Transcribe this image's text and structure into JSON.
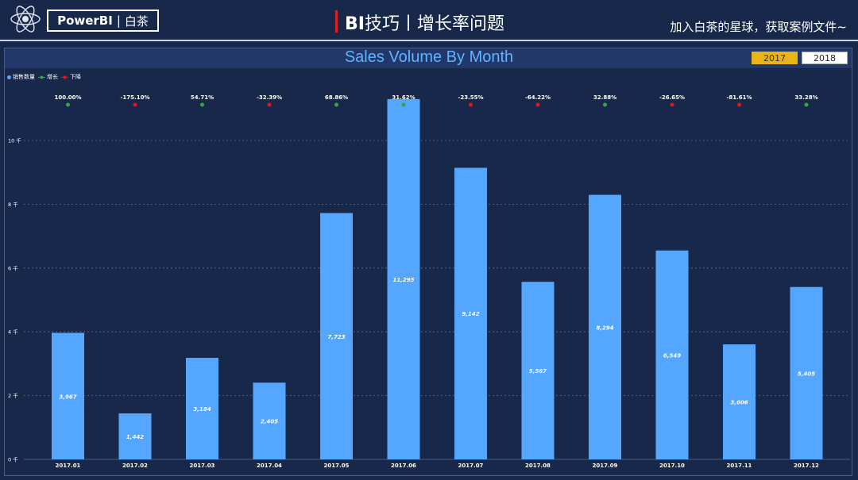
{
  "header": {
    "logo_text_bold": "PowerBI",
    "logo_sep": "|",
    "logo_text_cn": "白茶",
    "title_bold": "BI",
    "title_rest": "技巧丨增长率问题",
    "promo": "加入白茶的星球，获取案例文件~"
  },
  "slicer": {
    "years": [
      "2017",
      "2018"
    ],
    "selected": "2017"
  },
  "legend": [
    {
      "label": "销售数量",
      "color": "#55a6ff"
    },
    {
      "label": "增长",
      "color": "#2eaa44"
    },
    {
      "label": "下降",
      "color": "#e01818"
    }
  ],
  "colors": {
    "bar": "#55a6ff",
    "up": "#2eaa44",
    "down": "#e01818",
    "grid": "#5a6c90"
  },
  "chart_data": {
    "type": "bar",
    "title": "Sales Volume By Month",
    "categories": [
      "2017.01",
      "2017.02",
      "2017.03",
      "2017.04",
      "2017.05",
      "2017.06",
      "2017.07",
      "2017.08",
      "2017.09",
      "2017.10",
      "2017.11",
      "2017.12"
    ],
    "series": [
      {
        "name": "销售数量",
        "values": [
          3967,
          1442,
          3184,
          2405,
          7723,
          11295,
          9142,
          5567,
          8294,
          6549,
          3606,
          5405
        ]
      }
    ],
    "value_labels": [
      "3,967",
      "1,442",
      "3,184",
      "2,405",
      "7,723",
      "11,295",
      "9,142",
      "5,567",
      "8,294",
      "6,549",
      "3,606",
      "5,405"
    ],
    "growth_labels": [
      "100.00%",
      "-175.10%",
      "54.71%",
      "-32.39%",
      "68.86%",
      "31.62%",
      "-23.55%",
      "-64.22%",
      "32.88%",
      "-26.65%",
      "-81.61%",
      "33.28%"
    ],
    "growth_direction": [
      "up",
      "down",
      "up",
      "down",
      "up",
      "up",
      "down",
      "down",
      "up",
      "down",
      "down",
      "up"
    ],
    "ylim": [
      0,
      12000
    ],
    "yticks": [
      0,
      2000,
      4000,
      6000,
      8000,
      10000
    ],
    "ytick_labels": [
      "0 千",
      "2 千",
      "4 千",
      "6 千",
      "8 千",
      "10 千"
    ],
    "grid": true,
    "legend_position": "top-left"
  }
}
